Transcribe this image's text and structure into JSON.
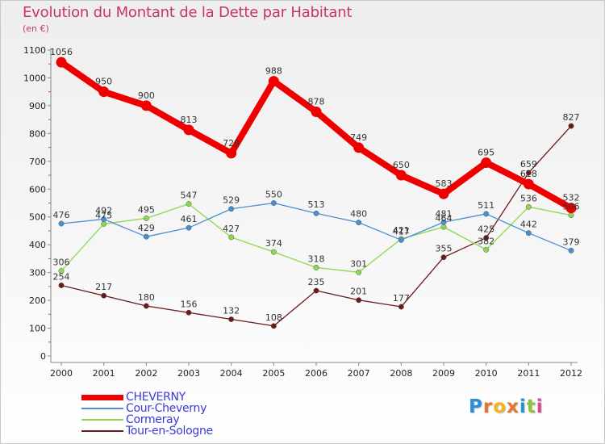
{
  "chart_data": {
    "type": "line",
    "title": "Evolution du Montant de la Dette par Habitant",
    "unit": "(en €)",
    "x": [
      "2000",
      "2001",
      "2002",
      "2003",
      "2004",
      "2005",
      "2006",
      "2007",
      "2008",
      "2009",
      "2010",
      "2011",
      "2012"
    ],
    "ylim": [
      0,
      1100
    ],
    "yticks": [
      0,
      100,
      200,
      300,
      400,
      500,
      600,
      700,
      800,
      900,
      1000,
      1100
    ],
    "grid": false,
    "legend_position": "bottom-left",
    "series": [
      {
        "name": "CHEVERNY",
        "color": "#ee0000",
        "values": [
          1056,
          950,
          900,
          813,
          729,
          988,
          878,
          749,
          650,
          583,
          695,
          618,
          532
        ]
      },
      {
        "name": "Cour-Cheverny",
        "color": "#4a90d0",
        "values": [
          476,
          492,
          429,
          461,
          529,
          550,
          513,
          480,
          417,
          481,
          511,
          442,
          379
        ]
      },
      {
        "name": "Cormeray",
        "color": "#8ed850",
        "values": [
          306,
          475,
          495,
          547,
          427,
          374,
          318,
          301,
          421,
          464,
          382,
          536,
          506
        ]
      },
      {
        "name": "Tour-en-Sologne",
        "color": "#6b1a1a",
        "values": [
          254,
          217,
          180,
          156,
          132,
          108,
          235,
          201,
          177,
          355,
          425,
          659,
          827
        ]
      }
    ]
  },
  "logo": {
    "text": "Proxiti",
    "letters": [
      "P",
      "r",
      "o",
      "x",
      "i",
      "t",
      "i"
    ],
    "colors": [
      "#2a8fd8",
      "#e8742a",
      "#f2b320",
      "#e8742a",
      "#2a8fd8",
      "#8ac43a",
      "#d84a8a"
    ]
  }
}
